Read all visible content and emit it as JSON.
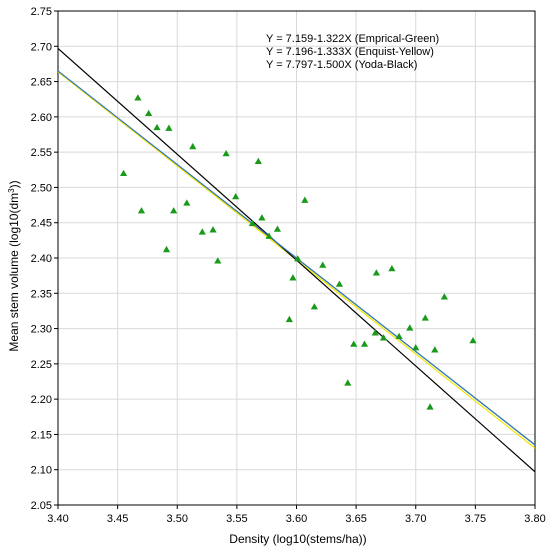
{
  "chart_data": {
    "type": "scatter",
    "xlabel": "Density (log10(stems/ha))",
    "ylabel": "Mean stem volume (log10(dm",
    "ylabel_sup": "3",
    "ylabel_close": "))",
    "xlim": [
      3.4,
      3.8
    ],
    "ylim": [
      2.05,
      2.75
    ],
    "x_ticks": [
      "3.40",
      "3.45",
      "3.50",
      "3.55",
      "3.60",
      "3.65",
      "3.70",
      "3.75",
      "3.80"
    ],
    "y_ticks": [
      "2.05",
      "2.10",
      "2.15",
      "2.20",
      "2.25",
      "2.30",
      "2.35",
      "2.40",
      "2.45",
      "2.50",
      "2.55",
      "2.60",
      "2.65",
      "2.70",
      "2.75"
    ],
    "grid": true,
    "legend_position": "top-right",
    "legend": [
      "Y = 7.159-1.322X (Emprical-Green)",
      "Y = 7.196-1.333X (Enquist-Yellow)",
      "Y = 7.797-1.500X (Yoda-Black)"
    ],
    "lines": [
      {
        "intercept": 7.159,
        "slope": -1.322,
        "color": "#7ab800"
      },
      {
        "intercept": 7.196,
        "slope": -1.333,
        "color": "#f2e600"
      },
      {
        "intercept": 7.797,
        "slope": -1.5,
        "color": "#000000"
      },
      {
        "intercept": 7.17,
        "slope": -1.325,
        "color": "#2e75c9"
      }
    ],
    "marker_color": "#1a9a1a",
    "points": [
      [
        3.455,
        2.52
      ],
      [
        3.467,
        2.627
      ],
      [
        3.47,
        2.467
      ],
      [
        3.476,
        2.605
      ],
      [
        3.483,
        2.585
      ],
      [
        3.491,
        2.412
      ],
      [
        3.493,
        2.584
      ],
      [
        3.497,
        2.467
      ],
      [
        3.508,
        2.478
      ],
      [
        3.513,
        2.558
      ],
      [
        3.521,
        2.437
      ],
      [
        3.53,
        2.44
      ],
      [
        3.534,
        2.396
      ],
      [
        3.541,
        2.548
      ],
      [
        3.549,
        2.487
      ],
      [
        3.563,
        2.449
      ],
      [
        3.568,
        2.537
      ],
      [
        3.571,
        2.457
      ],
      [
        3.577,
        2.431
      ],
      [
        3.584,
        2.441
      ],
      [
        3.594,
        2.313
      ],
      [
        3.597,
        2.372
      ],
      [
        3.601,
        2.399
      ],
      [
        3.607,
        2.482
      ],
      [
        3.615,
        2.331
      ],
      [
        3.622,
        2.39
      ],
      [
        3.636,
        2.363
      ],
      [
        3.643,
        2.223
      ],
      [
        3.648,
        2.278
      ],
      [
        3.657,
        2.278
      ],
      [
        3.667,
        2.379
      ],
      [
        3.673,
        2.287
      ],
      [
        3.68,
        2.385
      ],
      [
        3.686,
        2.289
      ],
      [
        3.695,
        2.301
      ],
      [
        3.7,
        2.273
      ],
      [
        3.708,
        2.315
      ],
      [
        3.712,
        2.189
      ],
      [
        3.716,
        2.27
      ],
      [
        3.724,
        2.345
      ],
      [
        3.748,
        2.283
      ],
      [
        3.666,
        2.294
      ]
    ]
  }
}
